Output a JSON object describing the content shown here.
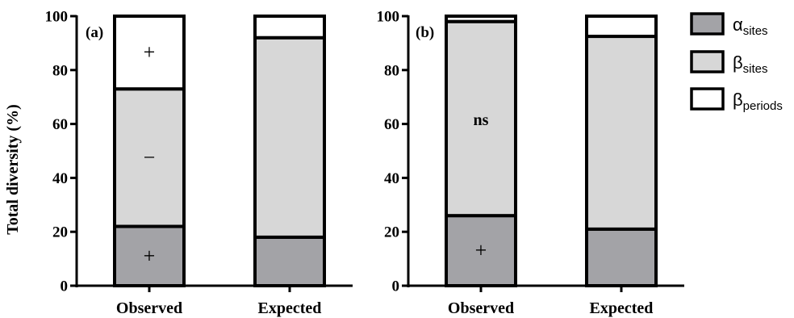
{
  "chart_data": [
    {
      "type": "bar",
      "stacked": true,
      "panel_tag": "(a)",
      "categories": [
        "Observed",
        "Expected"
      ],
      "ylabel": "Total diversity (%)",
      "ylim": [
        0,
        100
      ],
      "yticks": [
        "0",
        "20",
        "40",
        "60",
        "80",
        "100"
      ],
      "series": [
        {
          "name": "α_sites",
          "values": [
            22,
            18
          ],
          "color": "#a3a3a7"
        },
        {
          "name": "β_sites",
          "values": [
            51,
            74
          ],
          "color": "#d7d7d7"
        },
        {
          "name": "β_periods",
          "values": [
            27,
            8
          ],
          "color": "#ffffff"
        }
      ],
      "annotations": [
        {
          "category": "Observed",
          "series": "α_sites",
          "text": "+"
        },
        {
          "category": "Observed",
          "series": "β_sites",
          "text": "−"
        },
        {
          "category": "Observed",
          "series": "β_periods",
          "text": "+"
        }
      ]
    },
    {
      "type": "bar",
      "stacked": true,
      "panel_tag": "(b)",
      "categories": [
        "Observed",
        "Expected"
      ],
      "ylim": [
        0,
        100
      ],
      "yticks": [
        "0",
        "20",
        "40",
        "60",
        "80",
        "100"
      ],
      "series": [
        {
          "name": "α_sites",
          "values": [
            26,
            21
          ],
          "color": "#a3a3a7"
        },
        {
          "name": "β_sites",
          "values": [
            72,
            71.5
          ],
          "color": "#d7d7d7"
        },
        {
          "name": "β_periods",
          "values": [
            2,
            7.5
          ],
          "color": "#ffffff"
        }
      ],
      "annotations": [
        {
          "category": "Observed",
          "series": "α_sites",
          "text": "+"
        },
        {
          "category": "Observed",
          "series": "β_sites",
          "text": "ns"
        }
      ]
    }
  ],
  "legend": {
    "position": "right",
    "items": [
      {
        "symbol": "α",
        "subscript": "sites",
        "color": "#a3a3a7"
      },
      {
        "symbol": "β",
        "subscript": "sites",
        "color": "#d7d7d7"
      },
      {
        "symbol": "β",
        "subscript": "periods",
        "color": "#ffffff"
      }
    ]
  }
}
